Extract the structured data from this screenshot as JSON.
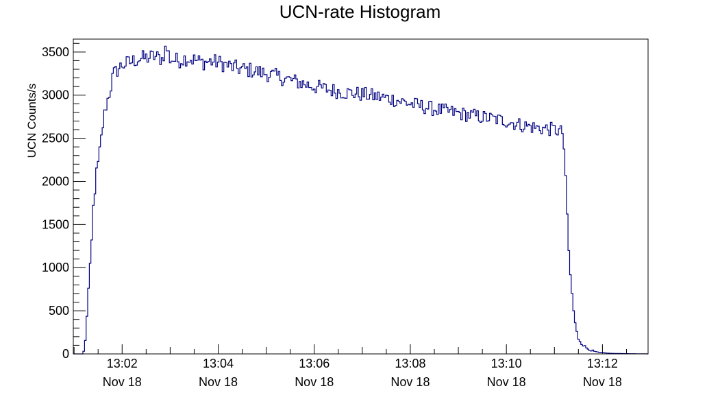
{
  "chart_data": {
    "type": "line",
    "title": "UCN-rate Histogram",
    "ylabel": "UCN Counts/s",
    "xlabel": "",
    "x_range": [
      "13:00:59",
      "13:12:57"
    ],
    "ylim": [
      0,
      3650
    ],
    "y_ticks": [
      0,
      500,
      1000,
      1500,
      2000,
      2500,
      3000,
      3500
    ],
    "x_ticks": [
      {
        "time": "13:02",
        "date": "Nov 18"
      },
      {
        "time": "13:04",
        "date": "Nov 18"
      },
      {
        "time": "13:06",
        "date": "Nov 18"
      },
      {
        "time": "13:08",
        "date": "Nov 18"
      },
      {
        "time": "13:10",
        "date": "Nov 18"
      },
      {
        "time": "13:12",
        "date": "Nov 18"
      }
    ],
    "grid": false,
    "line_color": "#000080",
    "series": [
      {
        "x": [
          "13:01:10",
          "13:01:12",
          "13:01:14",
          "13:01:16",
          "13:01:18",
          "13:01:20",
          "13:01:22",
          "13:01:24",
          "13:01:26",
          "13:01:28",
          "13:01:30",
          "13:01:32",
          "13:01:34",
          "13:01:36",
          "13:01:38",
          "13:01:40",
          "13:01:42",
          "13:01:44",
          "13:01:46",
          "13:01:48",
          "13:01:50",
          "13:01:55",
          "13:02:00",
          "13:02:10",
          "13:02:20",
          "13:02:30",
          "13:02:40",
          "13:02:50",
          "13:02:55",
          "13:03:00",
          "13:03:10",
          "13:03:20",
          "13:03:30",
          "13:03:40",
          "13:03:50",
          "13:04:00",
          "13:04:10",
          "13:04:20",
          "13:04:30",
          "13:04:40",
          "13:04:50",
          "13:05:00",
          "13:05:20",
          "13:05:40",
          "13:06:00",
          "13:06:20",
          "13:06:40",
          "13:07:00",
          "13:07:20",
          "13:07:40",
          "13:08:00",
          "13:08:20",
          "13:08:40",
          "13:09:00",
          "13:09:20",
          "13:09:40",
          "13:10:00",
          "13:10:20",
          "13:10:40",
          "13:11:00",
          "13:11:10",
          "13:11:12",
          "13:11:14",
          "13:11:16",
          "13:11:18",
          "13:11:20",
          "13:11:22",
          "13:11:24",
          "13:11:26",
          "13:11:28",
          "13:11:30",
          "13:11:35",
          "13:11:40",
          "13:11:45",
          "13:11:50",
          "13:11:55",
          "13:12:00",
          "13:12:05",
          "13:12:10",
          "13:12:20",
          "13:12:30",
          "13:12:40",
          "13:12:50",
          "13:12:57"
        ],
        "y": [
          0,
          30,
          150,
          450,
          750,
          1000,
          1300,
          1700,
          1900,
          2100,
          2200,
          2350,
          2500,
          2650,
          2780,
          2880,
          2950,
          3020,
          3100,
          3200,
          3250,
          3300,
          3350,
          3380,
          3420,
          3430,
          3450,
          3420,
          3560,
          3420,
          3400,
          3430,
          3410,
          3380,
          3390,
          3380,
          3350,
          3320,
          3300,
          3290,
          3270,
          3250,
          3200,
          3150,
          3100,
          3060,
          3030,
          3010,
          2980,
          2950,
          2900,
          2860,
          2820,
          2790,
          2760,
          2730,
          2700,
          2650,
          2620,
          2600,
          2570,
          2380,
          2000,
          1600,
          1200,
          900,
          700,
          500,
          350,
          250,
          180,
          110,
          70,
          45,
          30,
          20,
          15,
          10,
          7,
          5,
          3,
          2,
          1,
          0
        ]
      }
    ]
  }
}
